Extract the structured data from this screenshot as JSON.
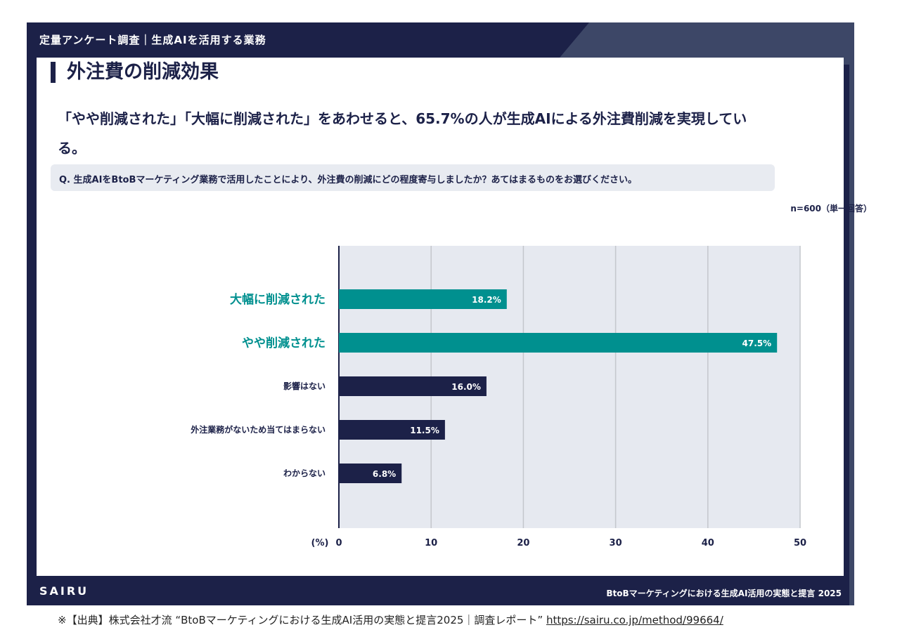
{
  "header": {
    "title": "定量アンケート調査｜生成AIを活用する業務"
  },
  "page_title": "外注費の削減効果",
  "lead": "「やや削減された」「大幅に削減された」をあわせると、65.7%の人が生成AIによる外注費削減を実現している。",
  "question": "Q. 生成AIをBtoBマーケティング業務で活用したことにより、外注費の削減にどの程度寄与しましたか？あてはまるものをお選びください。",
  "sample": "n=600（単一回答）",
  "footer": {
    "brand": "SAIRU",
    "report": "BtoBマーケティングにおける生成AI活用の実態と提言  2025"
  },
  "source": {
    "text": "※【出典】株式会社才流 “BtoBマーケティングにおける生成AI活用の実態と提言2025｜調査レポート” ",
    "link": "https://sairu.co.jp/method/99664/"
  },
  "colors": {
    "highlight": "#00908f",
    "normal": "#1c2148",
    "plot_bg": "#e6e9f0"
  },
  "chart_data": {
    "type": "bar",
    "orientation": "horizontal",
    "categories": [
      "大幅に削減された",
      "やや削減された",
      "影響はない",
      "外注業務がないため当てはまらない",
      "わからない"
    ],
    "values": [
      18.2,
      47.5,
      16.0,
      11.5,
      6.8
    ],
    "labels": [
      "18.2%",
      "47.5%",
      "16.0%",
      "11.5%",
      "6.8%"
    ],
    "highlight": [
      true,
      true,
      false,
      false,
      false
    ],
    "xlim": [
      0,
      50
    ],
    "xticks": [
      0,
      10,
      20,
      30,
      40,
      50
    ],
    "xlabel": "(%)",
    "grid": true
  }
}
